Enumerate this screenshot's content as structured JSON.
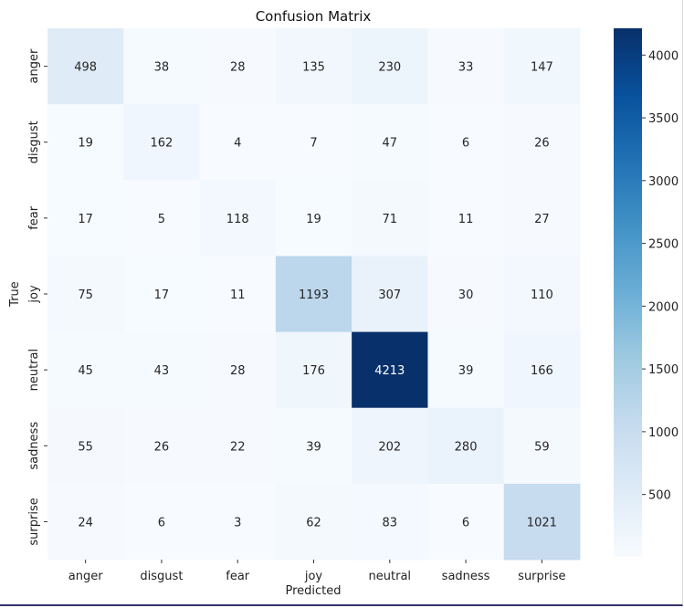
{
  "chart_data": {
    "type": "heatmap",
    "title": "Confusion Matrix",
    "xlabel": "Predicted",
    "ylabel": "True",
    "x_categories": [
      "anger",
      "disgust",
      "fear",
      "joy",
      "neutral",
      "sadness",
      "surprise"
    ],
    "y_categories": [
      "anger",
      "disgust",
      "fear",
      "joy",
      "neutral",
      "sadness",
      "surprise"
    ],
    "matrix": [
      [
        498,
        38,
        28,
        135,
        230,
        33,
        147
      ],
      [
        19,
        162,
        4,
        7,
        47,
        6,
        26
      ],
      [
        17,
        5,
        118,
        19,
        71,
        11,
        27
      ],
      [
        75,
        17,
        11,
        1193,
        307,
        30,
        110
      ],
      [
        45,
        43,
        28,
        176,
        4213,
        39,
        166
      ],
      [
        55,
        26,
        22,
        39,
        202,
        280,
        59
      ],
      [
        24,
        6,
        3,
        62,
        83,
        6,
        1021
      ]
    ],
    "colormap": "Blues",
    "colorbar": {
      "range": [
        3,
        4213
      ],
      "ticks": [
        500,
        1000,
        1500,
        2000,
        2500,
        3000,
        3500,
        4000
      ]
    }
  }
}
